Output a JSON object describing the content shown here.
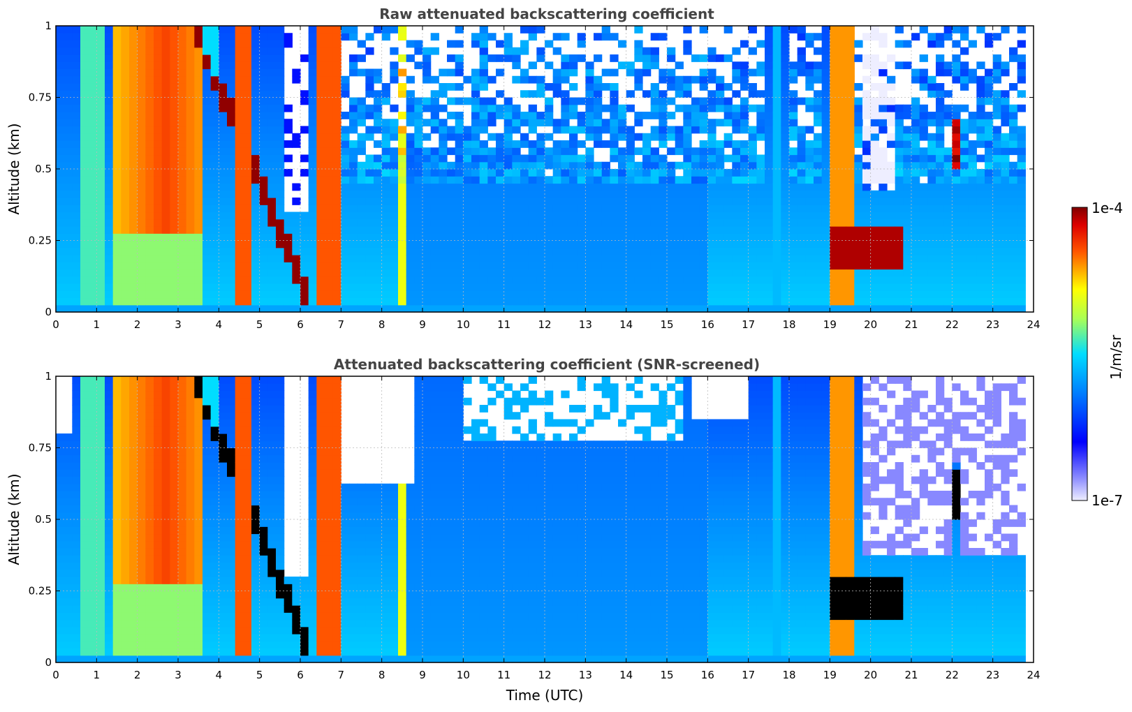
{
  "chart_data": [
    {
      "type": "heatmap",
      "title": "Raw attenuated backscattering coefficient",
      "ylabel": "Altitude (km)",
      "xlabel": "",
      "x_ticks": [
        "0",
        "1",
        "2",
        "3",
        "4",
        "5",
        "6",
        "7",
        "8",
        "9",
        "10",
        "11",
        "12",
        "13",
        "14",
        "15",
        "16",
        "17",
        "18",
        "19",
        "20",
        "21",
        "22",
        "23",
        "24"
      ],
      "y_ticks": [
        "0",
        "0.25",
        "0.5",
        "0.75",
        "1"
      ],
      "xlim": [
        0,
        24
      ],
      "ylim": [
        0,
        1
      ],
      "grid": true,
      "colorscale": "jet",
      "screened": false
    },
    {
      "type": "heatmap",
      "title": "Attenuated backscattering coefficient (SNR-screened)",
      "ylabel": "Altitude (km)",
      "xlabel": "Time (UTC)",
      "x_ticks": [
        "0",
        "1",
        "2",
        "3",
        "4",
        "5",
        "6",
        "7",
        "8",
        "9",
        "10",
        "11",
        "12",
        "13",
        "14",
        "15",
        "16",
        "17",
        "18",
        "19",
        "20",
        "21",
        "22",
        "23",
        "24"
      ],
      "y_ticks": [
        "0",
        "0.25",
        "0.5",
        "0.75",
        "1"
      ],
      "xlim": [
        0,
        24
      ],
      "ylim": [
        0,
        1
      ],
      "grid": true,
      "colorscale": "jet",
      "screened": true
    }
  ],
  "colorbar": {
    "label": "1/m/sr",
    "max_label": "1e-4",
    "min_label": "1e-7",
    "colors": [
      "#eeeeff",
      "#0000ff",
      "#00ccff",
      "#ffff00",
      "#ff0000",
      "#800000"
    ]
  }
}
